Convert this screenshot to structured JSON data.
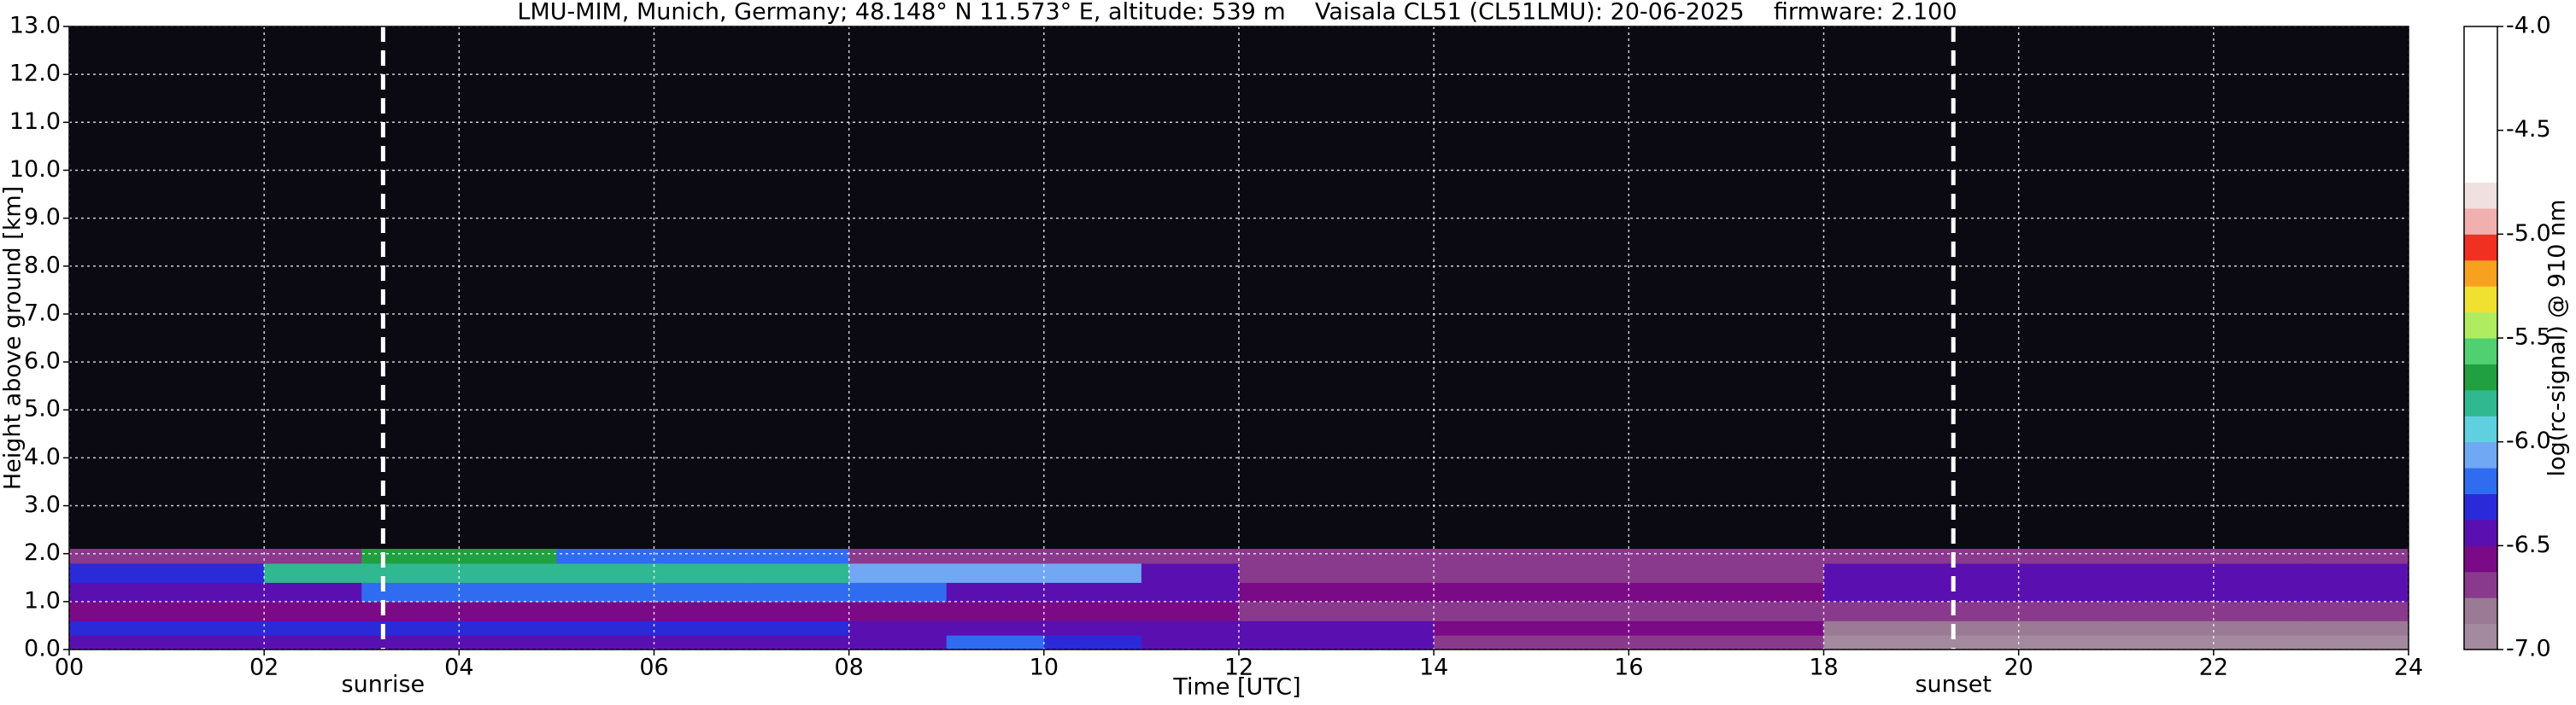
{
  "chart_data": {
    "type": "heatmap",
    "title": "LMU-MIM, Munich, Germany; 48.148° N 11.573° E, altitude: 539 m    Vaisala CL51 (CL51LMU): 20-06-2025    firmware: 2.100",
    "x_label": "Time [UTC]",
    "y_label": "Height above ground [km]",
    "colorbar_label": "log(rc-signal) @ 910 nm",
    "xlim": [
      0,
      24
    ],
    "xticks": [
      {
        "value": 0,
        "label": "00"
      },
      {
        "value": 2,
        "label": "02"
      },
      {
        "value": 4,
        "label": "04"
      },
      {
        "value": 6,
        "label": "06"
      },
      {
        "value": 8,
        "label": "08"
      },
      10,
      12,
      14,
      16,
      18,
      20,
      22,
      24
    ],
    "ylim": [
      0,
      13
    ],
    "yticks": [
      {
        "value": 0,
        "label": "0.0"
      },
      {
        "value": 1,
        "label": "1.0"
      },
      {
        "value": 2,
        "label": "2.0"
      },
      {
        "value": 3,
        "label": "3.0"
      },
      {
        "value": 4,
        "label": "4.0"
      },
      {
        "value": 5,
        "label": "5.0"
      },
      {
        "value": 6,
        "label": "6.0"
      },
      {
        "value": 7,
        "label": "7.0"
      },
      {
        "value": 8,
        "label": "8.0"
      },
      {
        "value": 9,
        "label": "9.0"
      },
      {
        "value": 10,
        "label": "10.0"
      },
      {
        "value": 11,
        "label": "11.0"
      },
      {
        "value": 12,
        "label": "12.0"
      },
      {
        "value": 13,
        "label": "13.0"
      }
    ],
    "zlim": [
      -7.0,
      -4.0
    ],
    "zticks": [
      {
        "value": -4,
        "label": "-4.0"
      },
      -4.5,
      {
        "value": -5,
        "label": "-5.0"
      },
      -5.5,
      {
        "value": -6,
        "label": "-6.0"
      },
      -6.5,
      {
        "value": -7,
        "label": "-7.0"
      }
    ],
    "colorscale": [
      "#a48a9e",
      "#9a7a94",
      "#8a3a8c",
      "#7a0a86",
      "#5a10b0",
      "#2a2ad8",
      "#2f6cf0",
      "#70a8f4",
      "#60d0e0",
      "#30b890",
      "#20a040",
      "#50d070",
      "#b0ec60",
      "#f0e030",
      "#f8a020",
      "#f03020",
      "#f0b0b0",
      "#f0e0e0",
      "#ffffff",
      "#ffffff",
      "#ffffff",
      "#ffffff",
      "#ffffff",
      "#ffffff"
    ],
    "background": "#0b0a12",
    "grid": true,
    "x": [
      0,
      1,
      2,
      3,
      4,
      5,
      6,
      7,
      8,
      9,
      10,
      11,
      12,
      13,
      14,
      15,
      16,
      17,
      18,
      19,
      20,
      21,
      22,
      23,
      24
    ],
    "y": [
      0,
      0.3,
      0.6,
      1.0,
      1.4,
      1.8,
      2.1
    ],
    "z": [
      [
        -6.4,
        -6.4,
        -6.4,
        -6.4,
        -6.4,
        -6.4,
        -6.4,
        -6.4,
        -6.4,
        -6.2,
        -6.3,
        -6.45,
        -6.45,
        -6.45,
        -6.65,
        -6.65,
        -6.65,
        -6.65,
        -6.9,
        -6.9,
        -6.9,
        -6.9,
        -6.9,
        -6.9
      ],
      [
        -6.3,
        -6.3,
        -6.3,
        -6.3,
        -6.3,
        -6.3,
        -6.3,
        -6.3,
        -6.4,
        -6.4,
        -6.4,
        -6.4,
        -6.4,
        -6.4,
        -6.6,
        -6.6,
        -6.6,
        -6.6,
        -6.85,
        -6.85,
        -6.85,
        -6.85,
        -6.85,
        -6.85
      ],
      [
        -6.6,
        -6.6,
        -6.6,
        -6.6,
        -6.55,
        -6.55,
        -6.55,
        -6.55,
        -6.55,
        -6.55,
        -6.55,
        -6.55,
        -6.65,
        -6.65,
        -6.65,
        -6.65,
        -6.65,
        -6.65,
        -6.75,
        -6.75,
        -6.75,
        -6.75,
        -6.75,
        -6.75
      ],
      [
        -6.5,
        -6.5,
        -6.5,
        -6.2,
        -6.2,
        -6.2,
        -6.2,
        -6.2,
        -6.2,
        -6.4,
        -6.4,
        -6.4,
        -6.55,
        -6.55,
        -6.55,
        -6.55,
        -6.55,
        -6.55,
        -6.5,
        -6.5,
        -6.5,
        -6.5,
        -6.5,
        -6.5
      ],
      [
        -6.3,
        -6.3,
        -5.8,
        -5.8,
        -5.8,
        -5.8,
        -5.8,
        -5.8,
        -6.1,
        -6.1,
        -6.1,
        -6.4,
        -6.7,
        -6.7,
        -6.7,
        -6.7,
        -6.7,
        -6.7,
        -6.5,
        -6.5,
        -6.5,
        -6.5,
        -6.5,
        -6.5
      ],
      [
        -6.7,
        -6.7,
        -6.7,
        -5.7,
        -5.7,
        -6.2,
        -6.2,
        -6.2,
        -6.75,
        -6.75,
        -6.75,
        -6.75,
        -6.75,
        -6.75,
        -6.75,
        -6.75,
        -6.75,
        -6.75,
        -6.75,
        -6.75,
        -6.75,
        -6.75,
        -6.75,
        -6.75
      ]
    ],
    "annotations": [
      {
        "text": "sunrise",
        "x": 3.22
      },
      {
        "text": "sunset",
        "x": 19.33
      }
    ]
  }
}
